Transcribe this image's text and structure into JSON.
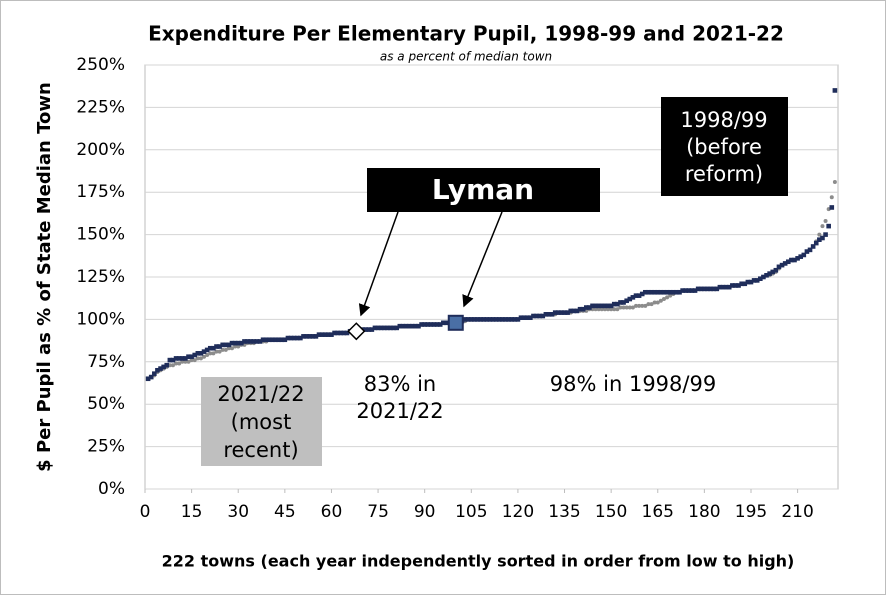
{
  "chart_data": {
    "type": "scatter",
    "title": "Expenditure Per Elementary Pupil, 1998-99 and 2021-22",
    "subtitle": "as a percent of median town",
    "xlabel": "222 towns (each year independently sorted in order from low to high)",
    "ylabel": "$ Per Pupil as % of State Median Town",
    "xlim": [
      0,
      223
    ],
    "ylim": [
      0,
      250
    ],
    "xticks": [
      0,
      15,
      30,
      45,
      60,
      75,
      90,
      105,
      120,
      135,
      150,
      165,
      180,
      195,
      210
    ],
    "yticks": [
      {
        "value": 0,
        "label": "0%"
      },
      {
        "value": 25,
        "label": "25%"
      },
      {
        "value": 50,
        "label": "50%"
      },
      {
        "value": 75,
        "label": "75%"
      },
      {
        "value": 100,
        "label": "100%"
      },
      {
        "value": 125,
        "label": "125%"
      },
      {
        "value": 150,
        "label": "150%"
      },
      {
        "value": 175,
        "label": "175%"
      },
      {
        "value": 200,
        "label": "200%"
      },
      {
        "value": 225,
        "label": "225%"
      },
      {
        "value": 250,
        "label": "250%"
      }
    ],
    "grid": true,
    "x": [
      1,
      2,
      3,
      4,
      5,
      6,
      7,
      8,
      9,
      10,
      11,
      12,
      13,
      14,
      15,
      16,
      17,
      18,
      19,
      20,
      21,
      22,
      23,
      24,
      25,
      26,
      27,
      28,
      29,
      30,
      31,
      32,
      33,
      34,
      35,
      36,
      37,
      38,
      39,
      40,
      41,
      42,
      43,
      44,
      45,
      46,
      47,
      48,
      49,
      50,
      51,
      52,
      53,
      54,
      55,
      56,
      57,
      58,
      59,
      60,
      61,
      62,
      63,
      64,
      65,
      66,
      67,
      68,
      69,
      70,
      71,
      72,
      73,
      74,
      75,
      76,
      77,
      78,
      79,
      80,
      81,
      82,
      83,
      84,
      85,
      86,
      87,
      88,
      89,
      90,
      91,
      92,
      93,
      94,
      95,
      96,
      97,
      98,
      99,
      100,
      101,
      102,
      103,
      104,
      105,
      106,
      107,
      108,
      109,
      110,
      111,
      112,
      113,
      114,
      115,
      116,
      117,
      118,
      119,
      120,
      121,
      122,
      123,
      124,
      125,
      126,
      127,
      128,
      129,
      130,
      131,
      132,
      133,
      134,
      135,
      136,
      137,
      138,
      139,
      140,
      141,
      142,
      143,
      144,
      145,
      146,
      147,
      148,
      149,
      150,
      151,
      152,
      153,
      154,
      155,
      156,
      157,
      158,
      159,
      160,
      161,
      162,
      163,
      164,
      165,
      166,
      167,
      168,
      169,
      170,
      171,
      172,
      173,
      174,
      175,
      176,
      177,
      178,
      179,
      180,
      181,
      182,
      183,
      184,
      185,
      186,
      187,
      188,
      189,
      190,
      191,
      192,
      193,
      194,
      195,
      196,
      197,
      198,
      199,
      200,
      201,
      202,
      203,
      204,
      205,
      206,
      207,
      208,
      209,
      210,
      211,
      212,
      213,
      214,
      215,
      216,
      217,
      218,
      219,
      220,
      221,
      222
    ],
    "series": [
      {
        "name": "2021/22",
        "color": "#8c8c8c",
        "values": [
          65,
          66,
          67,
          69,
          70,
          71,
          72,
          73,
          73,
          74,
          74,
          75,
          75,
          75,
          76,
          76,
          77,
          77,
          78,
          79,
          80,
          80,
          81,
          81,
          82,
          82,
          83,
          83,
          84,
          84,
          85,
          85,
          86,
          86,
          86,
          87,
          87,
          87,
          87,
          88,
          88,
          88,
          88,
          88,
          88,
          89,
          89,
          89,
          89,
          89,
          90,
          90,
          90,
          90,
          90,
          91,
          91,
          91,
          91,
          91,
          92,
          92,
          92,
          92,
          92,
          93,
          93,
          93,
          93,
          94,
          94,
          94,
          94,
          95,
          95,
          95,
          95,
          95,
          95,
          95,
          95,
          96,
          96,
          96,
          96,
          96,
          96,
          96,
          97,
          97,
          97,
          97,
          97,
          97,
          97,
          98,
          98,
          98,
          98,
          98,
          98,
          99,
          99,
          100,
          100,
          100,
          100,
          100,
          100,
          100,
          100,
          100,
          100,
          100,
          100,
          100,
          100,
          100,
          100,
          100,
          101,
          101,
          101,
          101,
          102,
          102,
          102,
          102,
          103,
          103,
          103,
          103,
          104,
          104,
          104,
          104,
          104,
          105,
          105,
          105,
          105,
          105,
          106,
          106,
          106,
          106,
          106,
          106,
          106,
          106,
          106,
          106,
          107,
          107,
          107,
          107,
          107,
          108,
          108,
          108,
          108,
          109,
          109,
          110,
          110,
          111,
          112,
          113,
          114,
          115,
          116,
          116,
          117,
          117,
          117,
          117,
          117,
          118,
          118,
          118,
          118,
          118,
          118,
          118,
          119,
          119,
          119,
          119,
          120,
          120,
          120,
          121,
          121,
          122,
          122,
          123,
          123,
          124,
          125,
          126,
          126,
          127,
          128,
          130,
          132,
          133,
          134,
          135,
          135,
          136,
          137,
          138,
          140,
          141,
          143,
          146,
          150,
          155,
          158,
          165,
          172,
          181
        ]
      },
      {
        "name": "1998/99",
        "color": "#1f2d5a",
        "values": [
          65,
          66,
          68,
          70,
          71,
          72,
          73,
          76,
          76,
          77,
          77,
          77,
          77,
          78,
          78,
          79,
          80,
          80,
          81,
          82,
          83,
          83,
          84,
          84,
          85,
          85,
          85,
          86,
          86,
          86,
          86,
          87,
          87,
          87,
          87,
          87,
          87,
          88,
          88,
          88,
          88,
          88,
          88,
          88,
          88,
          89,
          89,
          89,
          89,
          89,
          90,
          90,
          90,
          90,
          90,
          91,
          91,
          91,
          91,
          91,
          92,
          92,
          92,
          92,
          92,
          93,
          93,
          93,
          93,
          94,
          94,
          94,
          94,
          95,
          95,
          95,
          95,
          95,
          95,
          95,
          95,
          96,
          96,
          96,
          96,
          96,
          96,
          96,
          97,
          97,
          97,
          97,
          97,
          97,
          97,
          98,
          98,
          98,
          98,
          98,
          98,
          99,
          100,
          100,
          100,
          100,
          100,
          100,
          100,
          100,
          100,
          100,
          100,
          100,
          100,
          100,
          100,
          100,
          100,
          100,
          101,
          101,
          101,
          101,
          102,
          102,
          102,
          102,
          103,
          103,
          103,
          104,
          104,
          104,
          104,
          104,
          105,
          105,
          105,
          106,
          106,
          107,
          107,
          108,
          108,
          108,
          108,
          108,
          108,
          108,
          109,
          109,
          110,
          110,
          111,
          112,
          113,
          114,
          114,
          115,
          116,
          116,
          116,
          116,
          116,
          116,
          116,
          116,
          116,
          116,
          116,
          116,
          117,
          117,
          117,
          117,
          117,
          118,
          118,
          118,
          118,
          118,
          118,
          118,
          119,
          119,
          119,
          119,
          120,
          120,
          120,
          121,
          121,
          122,
          122,
          123,
          123,
          124,
          125,
          126,
          127,
          128,
          129,
          131,
          132,
          133,
          134,
          135,
          135,
          136,
          137,
          138,
          140,
          141,
          143,
          145,
          147,
          148,
          150,
          155,
          166,
          235
        ]
      }
    ],
    "annotations": {
      "lyman": "Lyman",
      "box_1998": [
        "(before",
        "reform)"
      ],
      "box_2021": [
        "(most",
        "recent)"
      ],
      "note_2021": [
        "83% in",
        "2021/22"
      ],
      "note_1998": "98% in 1998/99"
    }
  }
}
